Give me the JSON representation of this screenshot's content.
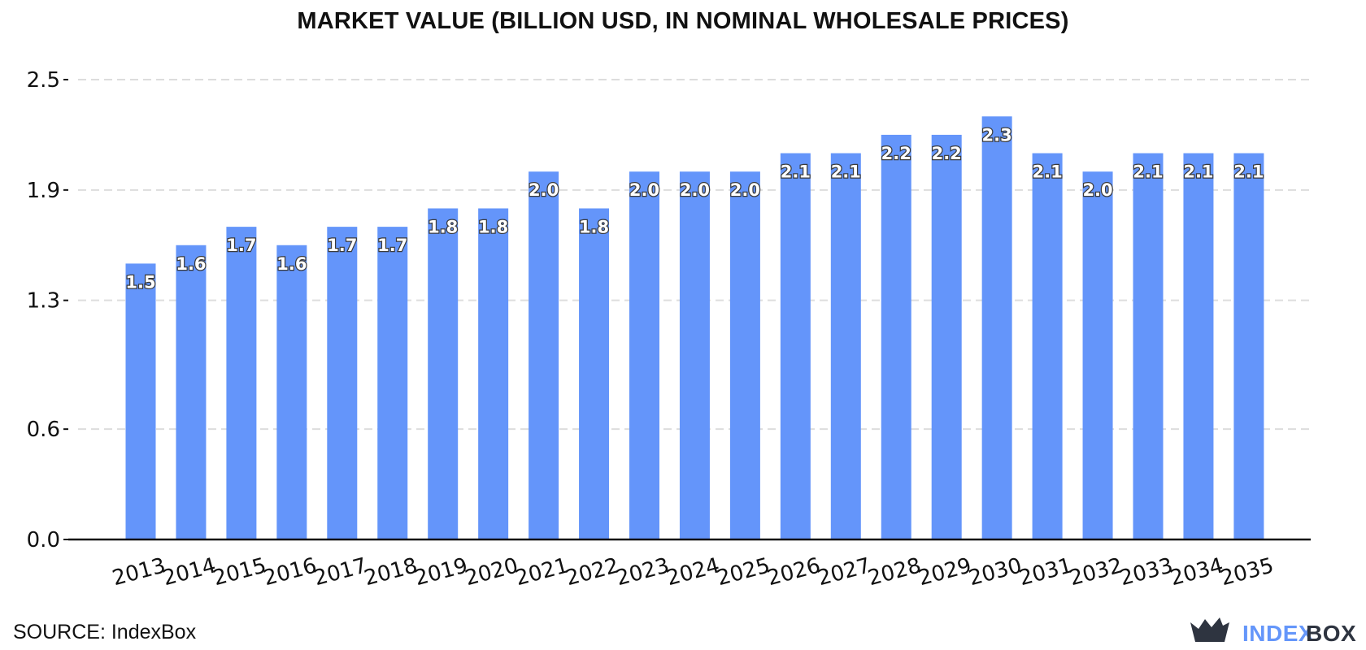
{
  "chart_data": {
    "type": "bar",
    "title": "MARKET VALUE (BILLION USD, IN NOMINAL WHOLESALE PRICES)",
    "xlabel": "",
    "ylabel": "",
    "categories": [
      "2013",
      "2014",
      "2015",
      "2016",
      "2017",
      "2018",
      "2019",
      "2020",
      "2021",
      "2022",
      "2023",
      "2024",
      "2025",
      "2026",
      "2027",
      "2028",
      "2029",
      "2030",
      "2031",
      "2032",
      "2033",
      "2034",
      "2035"
    ],
    "values": [
      1.5,
      1.6,
      1.7,
      1.6,
      1.7,
      1.7,
      1.8,
      1.8,
      2.0,
      1.8,
      2.0,
      2.0,
      2.0,
      2.1,
      2.1,
      2.2,
      2.2,
      2.3,
      2.1,
      2.0,
      2.1,
      2.1,
      2.1
    ],
    "value_labels": [
      "1.5",
      "1.6",
      "1.7",
      "1.6",
      "1.7",
      "1.7",
      "1.8",
      "1.8",
      "2.0",
      "1.8",
      "2.0",
      "2.0",
      "2.0",
      "2.1",
      "2.1",
      "2.2",
      "2.2",
      "2.3",
      "2.1",
      "2.0",
      "2.1",
      "2.1",
      "2.1"
    ],
    "yticks": [
      "0.0",
      "0.6",
      "1.3",
      "1.9",
      "2.5"
    ],
    "ytick_values": [
      0.0,
      0.6,
      1.3,
      1.9,
      2.5
    ],
    "ylim": [
      0,
      2.5
    ],
    "grid": "horizontal-dashed",
    "legend": "none",
    "bar_color": "#6495fa",
    "grid_color": "#dddddd"
  },
  "footer": {
    "source": "SOURCE: IndexBox"
  },
  "logo": {
    "word_part1": "INDEX",
    "word_part2": "BOX",
    "icon": "indexbox-crown-icon",
    "color_accent": "#6496fa",
    "color_dark": "#2e3440"
  }
}
